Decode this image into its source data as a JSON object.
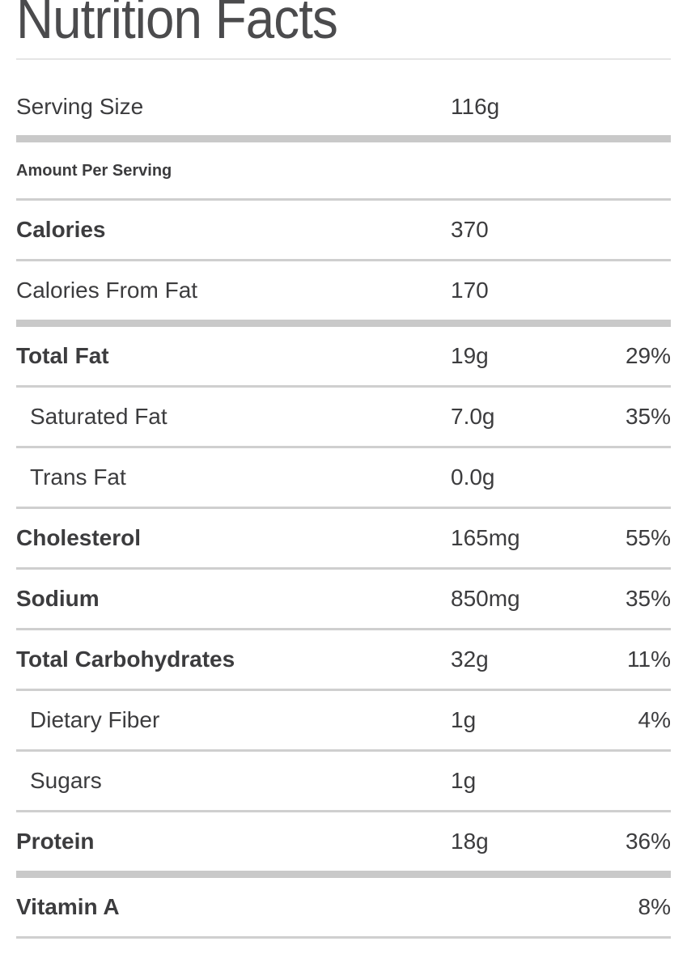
{
  "title": "Nutrition Facts",
  "serving_row": {
    "label": "Serving Size",
    "value": "116g"
  },
  "section_header": "Amount Per Serving",
  "rows": [
    {
      "label": "Calories",
      "value": "370",
      "pct": ""
    },
    {
      "label": "Calories From Fat",
      "value": "170",
      "pct": ""
    },
    {
      "label": "Total Fat",
      "value": "19g",
      "pct": "29%"
    },
    {
      "label": "Saturated Fat",
      "value": "7.0g",
      "pct": "35%"
    },
    {
      "label": "Trans Fat",
      "value": "0.0g",
      "pct": ""
    },
    {
      "label": "Cholesterol",
      "value": "165mg",
      "pct": "55%"
    },
    {
      "label": "Sodium",
      "value": "850mg",
      "pct": "35%"
    },
    {
      "label": "Total Carbohydrates",
      "value": "32g",
      "pct": "11%"
    },
    {
      "label": "Dietary Fiber",
      "value": "1g",
      "pct": "4%"
    },
    {
      "label": "Sugars",
      "value": "1g",
      "pct": ""
    },
    {
      "label": "Protein",
      "value": "18g",
      "pct": "36%"
    },
    {
      "label": "Vitamin A",
      "value": "",
      "pct": "8%"
    }
  ],
  "colors": {
    "background": "#ffffff",
    "text": "#3c3c3e",
    "title_text": "#4b4b4d",
    "divider_thin": "#cfcfcf",
    "divider_thick": "#c9c9c9",
    "title_rule": "#e5e5e5"
  }
}
